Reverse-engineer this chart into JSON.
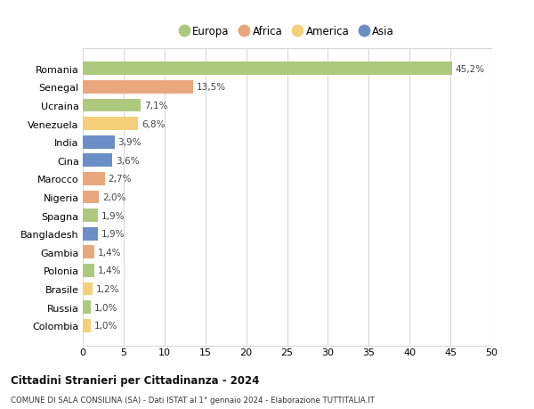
{
  "categories": [
    "Romania",
    "Senegal",
    "Ucraina",
    "Venezuela",
    "India",
    "Cina",
    "Marocco",
    "Nigeria",
    "Spagna",
    "Bangladesh",
    "Gambia",
    "Polonia",
    "Brasile",
    "Russia",
    "Colombia"
  ],
  "values": [
    45.2,
    13.5,
    7.1,
    6.8,
    3.9,
    3.6,
    2.7,
    2.0,
    1.9,
    1.9,
    1.4,
    1.4,
    1.2,
    1.0,
    1.0
  ],
  "labels": [
    "45,2%",
    "13,5%",
    "7,1%",
    "6,8%",
    "3,9%",
    "3,6%",
    "2,7%",
    "2,0%",
    "1,9%",
    "1,9%",
    "1,4%",
    "1,4%",
    "1,2%",
    "1,0%",
    "1,0%"
  ],
  "bar_colors": [
    "#adc97e",
    "#e8a87c",
    "#adc97e",
    "#f5d07a",
    "#6b8ec7",
    "#6b8ec7",
    "#e8a87c",
    "#e8a87c",
    "#adc97e",
    "#6b8ec7",
    "#e8a87c",
    "#adc97e",
    "#f5d07a",
    "#adc97e",
    "#f5d07a"
  ],
  "legend_labels": [
    "Europa",
    "Africa",
    "America",
    "Asia"
  ],
  "legend_colors": [
    "#adc97e",
    "#e8a87c",
    "#f5d07a",
    "#6b8ec7"
  ],
  "xlim": [
    0,
    50
  ],
  "xticks": [
    0,
    5,
    10,
    15,
    20,
    25,
    30,
    35,
    40,
    45,
    50
  ],
  "title": "Cittadini Stranieri per Cittadinanza - 2024",
  "subtitle": "COMUNE DI SALA CONSILINA (SA) - Dati ISTAT al 1° gennaio 2024 - Elaborazione TUTTITALIA.IT",
  "bg_color": "#ffffff",
  "grid_color": "#d8d8d8"
}
